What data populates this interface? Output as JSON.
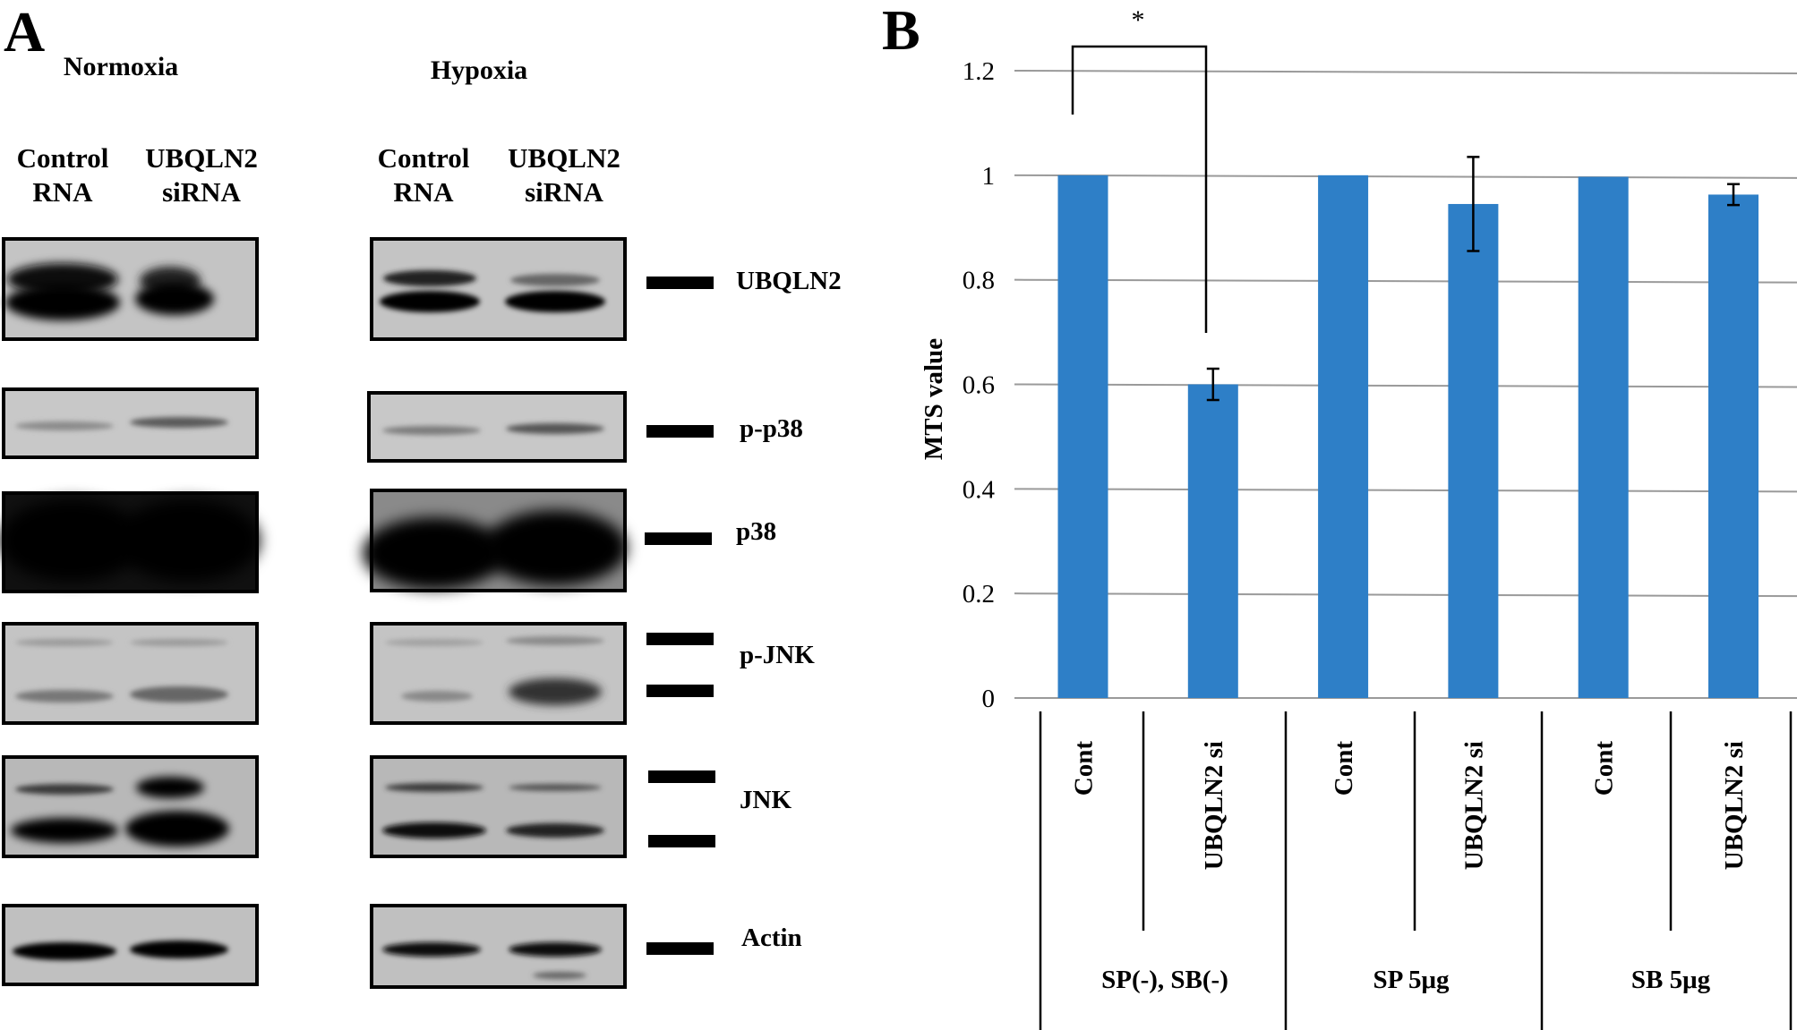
{
  "panel_a": {
    "letter": "A",
    "conditions": [
      "Normoxia",
      "Hypoxia"
    ],
    "lanes": [
      "Control\nRNA",
      "UBQLN2\nsiRNA",
      "Control\nRNA",
      "UBQLN2\nsiRNA"
    ],
    "proteins": [
      "UBQLN2",
      "p-p38",
      "p38",
      "p-JNK",
      "JNK",
      "Actin"
    ]
  },
  "panel_b": {
    "letter": "B",
    "significance": "*"
  },
  "chart_data": {
    "type": "bar",
    "ylabel": "MTS value",
    "ylim": [
      0,
      1.2
    ],
    "yticks": [
      "0",
      "0.2",
      "0.4",
      "0.6",
      "0.8",
      "1",
      "1.2"
    ],
    "categories": [
      "Cont",
      "UBQLN2 si",
      "Cont",
      "UBQLN2 si",
      "Cont",
      "UBQLN2 si"
    ],
    "groups": [
      "SP(-), SB(-)",
      "SP 5μg",
      "SB 5μg"
    ],
    "values": [
      1.0,
      0.6,
      1.0,
      0.945,
      0.997,
      0.963
    ],
    "errors": [
      0,
      0.03,
      0,
      0.09,
      0,
      0.02
    ],
    "bar_color": "#2E7FC7",
    "grid": true
  }
}
